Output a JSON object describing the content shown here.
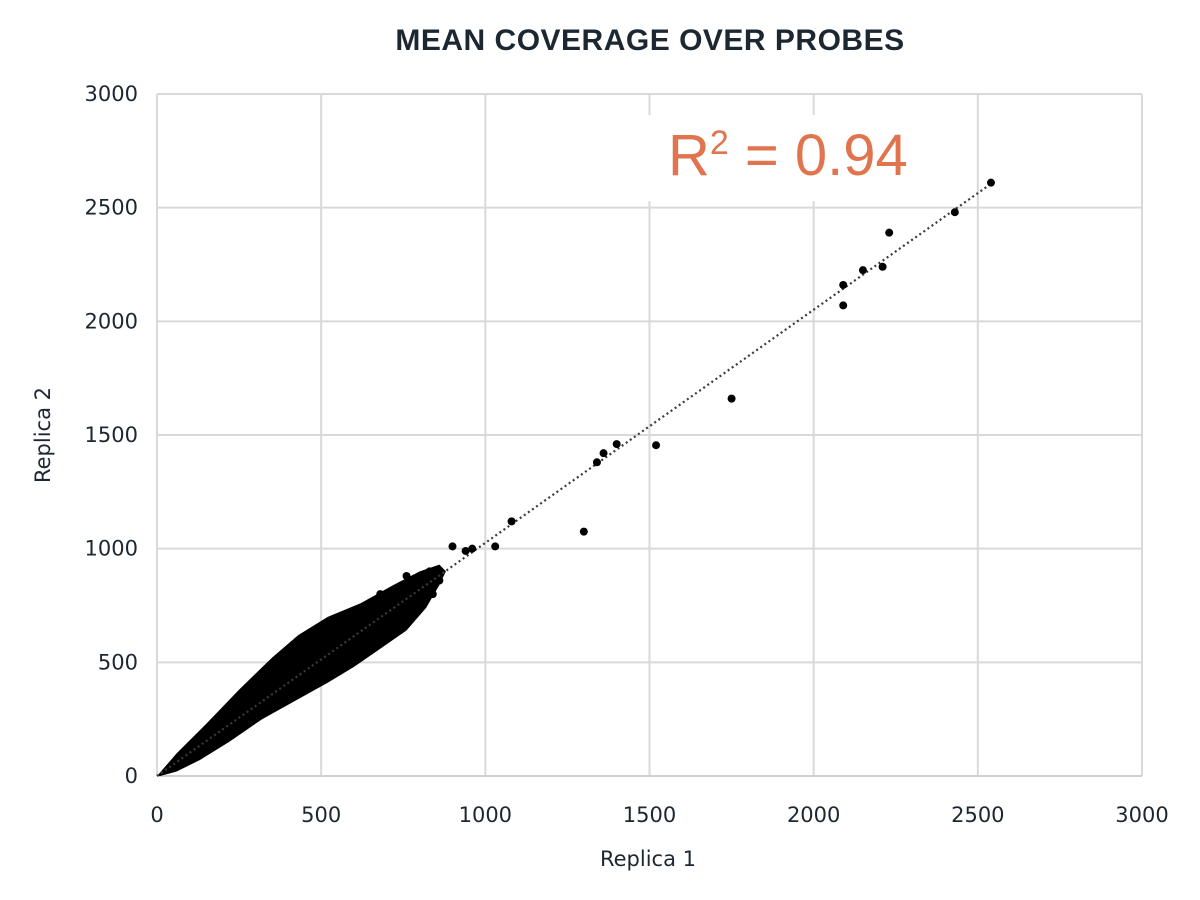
{
  "chart_data": {
    "type": "scatter",
    "title": "MEAN COVERAGE OVER PROBES",
    "xlabel": "Replica 1",
    "ylabel": "Replica 2",
    "xlim": [
      0,
      3000
    ],
    "ylim": [
      0,
      3000
    ],
    "xticks": [
      "0",
      "500",
      "1000",
      "1500",
      "2000",
      "2500",
      "3000"
    ],
    "yticks": [
      "0",
      "500",
      "1000",
      "1500",
      "2000",
      "2500",
      "3000"
    ],
    "grid": true,
    "legend": "none",
    "trendline": {
      "style": "dotted",
      "x": [
        0,
        2540
      ],
      "y": [
        0,
        2605
      ]
    },
    "annotation": {
      "base": "R",
      "sup": "2",
      "rest": " = 0.94",
      "color": "#e0744f"
    },
    "dense_cluster": {
      "x_range": [
        0,
        900
      ],
      "y_range": [
        0,
        900
      ],
      "description_color": "#000000"
    },
    "points": [
      [
        1340,
        1380
      ],
      [
        1360,
        1420
      ],
      [
        1400,
        1460
      ],
      [
        1300,
        1075
      ],
      [
        1520,
        1455
      ],
      [
        1750,
        1660
      ],
      [
        2090,
        2160
      ],
      [
        2090,
        2070
      ],
      [
        2150,
        2225
      ],
      [
        2210,
        2240
      ],
      [
        2230,
        2390
      ],
      [
        2430,
        2480
      ],
      [
        2540,
        2610
      ],
      [
        1080,
        1120
      ],
      [
        1030,
        1010
      ],
      [
        960,
        1000
      ],
      [
        940,
        990
      ],
      [
        900,
        1010
      ]
    ],
    "point_color": "#000000"
  }
}
